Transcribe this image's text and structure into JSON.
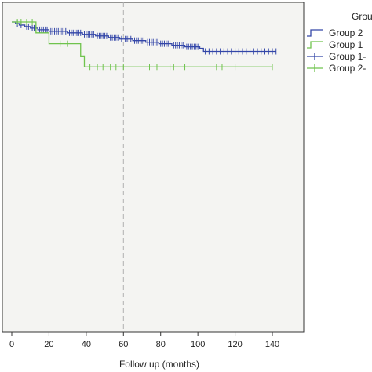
{
  "chart_data": {
    "type": "line",
    "subtype": "kaplan-meier",
    "xlabel": "Follow up (months)",
    "ylabel": "",
    "xlim": [
      -6,
      152
    ],
    "ylim": [
      0,
      1
    ],
    "x_ticks": [
      0,
      20,
      40,
      60,
      80,
      100,
      120,
      140
    ],
    "reference_line_x": 60,
    "grid": false,
    "legend_title": "Grou",
    "legend_position": "top-right",
    "colors": {
      "group2": "#3346a8",
      "group1": "#6fc34d",
      "background": "#f4f4f2"
    },
    "legend": [
      {
        "label": "Group 2",
        "symbol": "step",
        "color": "#3346a8"
      },
      {
        "label": "Group 1",
        "symbol": "step",
        "color": "#6fc34d"
      },
      {
        "label": "Group 1-",
        "symbol": "cross",
        "color": "#3346a8"
      },
      {
        "label": "Group 2-",
        "symbol": "cross",
        "color": "#6fc34d"
      }
    ],
    "series": [
      {
        "name": "Group 2",
        "color": "#3346a8",
        "steps": [
          [
            0,
            1.0
          ],
          [
            2,
            0.995
          ],
          [
            4,
            0.99
          ],
          [
            7,
            0.985
          ],
          [
            10,
            0.98
          ],
          [
            14,
            0.975
          ],
          [
            20,
            0.97
          ],
          [
            30,
            0.965
          ],
          [
            38,
            0.96
          ],
          [
            45,
            0.955
          ],
          [
            52,
            0.95
          ],
          [
            58,
            0.945
          ],
          [
            65,
            0.94
          ],
          [
            72,
            0.935
          ],
          [
            79,
            0.93
          ],
          [
            86,
            0.925
          ],
          [
            93,
            0.92
          ],
          [
            101,
            0.915
          ],
          [
            103,
            0.905
          ],
          [
            142,
            0.905
          ]
        ],
        "censored": [
          3,
          5,
          8,
          9,
          11,
          12,
          13,
          15,
          16,
          17,
          18,
          19,
          21,
          22,
          23,
          24,
          25,
          26,
          27,
          28,
          29,
          31,
          32,
          33,
          34,
          35,
          36,
          37,
          39,
          40,
          41,
          42,
          43,
          44,
          46,
          47,
          48,
          49,
          50,
          51,
          53,
          54,
          55,
          56,
          57,
          59,
          61,
          62,
          63,
          64,
          66,
          67,
          68,
          69,
          70,
          71,
          73,
          74,
          75,
          76,
          77,
          78,
          80,
          81,
          82,
          83,
          84,
          85,
          87,
          88,
          89,
          90,
          91,
          92,
          94,
          95,
          96,
          97,
          98,
          99,
          100,
          104,
          106,
          108,
          110,
          112,
          114,
          116,
          118,
          120,
          122,
          124,
          126,
          128,
          130,
          132,
          134,
          136,
          138,
          140,
          142
        ]
      },
      {
        "name": "Group 1",
        "color": "#6fc34d",
        "steps": [
          [
            0,
            1.0
          ],
          [
            13,
            0.965
          ],
          [
            20,
            0.93
          ],
          [
            37,
            0.89
          ],
          [
            39,
            0.855
          ],
          [
            140,
            0.855
          ]
        ],
        "censored": [
          3,
          5,
          8,
          11,
          26,
          30,
          42,
          46,
          49,
          53,
          56,
          60,
          74,
          78,
          85,
          87,
          93,
          110,
          113,
          120,
          140
        ]
      }
    ]
  }
}
